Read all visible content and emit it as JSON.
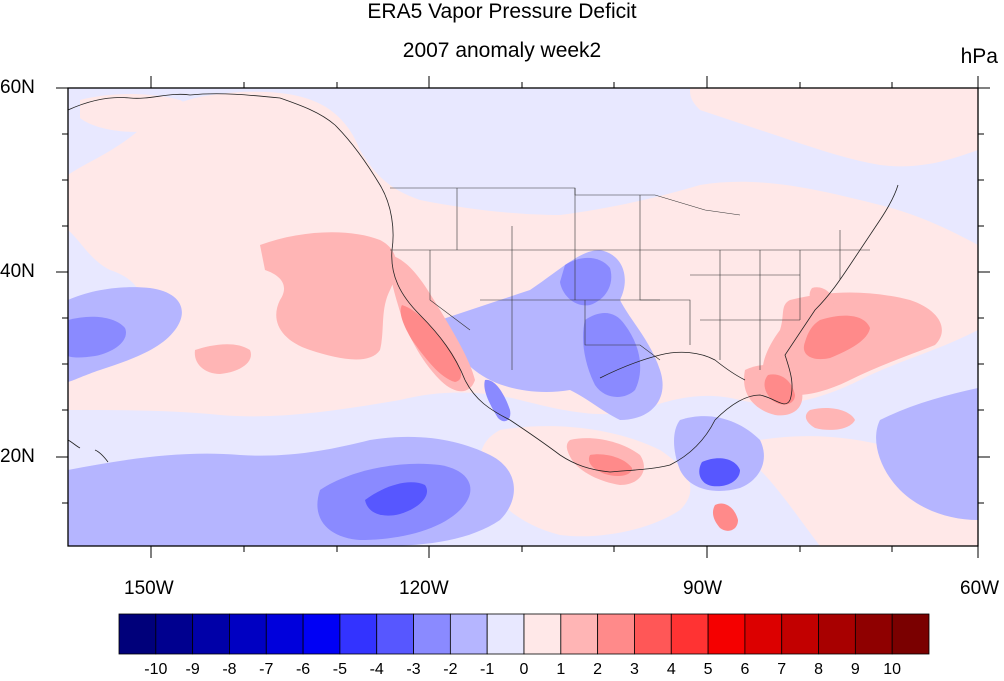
{
  "title": "ERA5 Vapor Pressure Deficit",
  "subtitle": "2007 anomaly week2",
  "units": "hPa",
  "lat_labels": [
    "60N",
    "40N",
    "20N"
  ],
  "lon_labels": [
    "150W",
    "120W",
    "90W",
    "60W"
  ],
  "colorbar": {
    "labels": [
      "-10",
      "-9",
      "-8",
      "-7",
      "-6",
      "-5",
      "-4",
      "-3",
      "-2",
      "-1",
      "0",
      "1",
      "2",
      "3",
      "4",
      "5",
      "6",
      "7",
      "8",
      "9",
      "10"
    ],
    "colors": [
      "#00007a",
      "#00008f",
      "#0000a8",
      "#0000c2",
      "#0000dc",
      "#0000f5",
      "#3333ff",
      "#5757ff",
      "#8a8aff",
      "#b5b5ff",
      "#e8e8ff",
      "#ffe8e8",
      "#ffb5b5",
      "#ff8a8a",
      "#ff5757",
      "#ff3333",
      "#f50000",
      "#dc0000",
      "#c20000",
      "#a80000",
      "#8f0000",
      "#7a0000"
    ]
  },
  "map_colors": {
    "background_neutral_neg": "#e8e8ff",
    "neutral_pos": "#ffe8e8",
    "neg1": "#b5b5ff",
    "neg2": "#8a8aff",
    "neg3": "#5757ff",
    "pos1": "#ffb5b5",
    "pos2": "#ff8a8a",
    "pos3": "#ff5757"
  }
}
